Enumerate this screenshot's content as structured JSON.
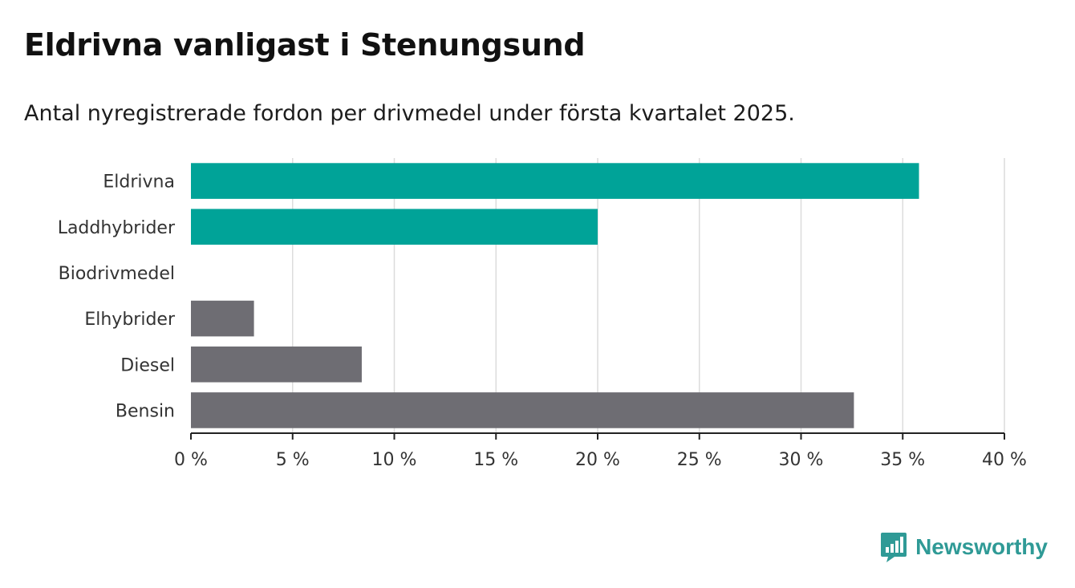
{
  "title": "Eldrivna vanligast i Stenungsund",
  "subtitle": "Antal nyregistrerade fordon per drivmedel under första kvartalet 2025.",
  "brand": {
    "name": "Newsworthy",
    "icon": "newsworthy-logo-icon"
  },
  "colors": {
    "highlight": "#00a398",
    "default": "#6e6d73",
    "grid": "#dcdcdc",
    "axis": "#222222"
  },
  "chart_data": {
    "type": "bar",
    "orientation": "horizontal",
    "categories": [
      "Eldrivna",
      "Laddhybrider",
      "Biodrivmedel",
      "Elhybrider",
      "Diesel",
      "Bensin"
    ],
    "values": [
      35.8,
      20.0,
      0,
      3.1,
      8.4,
      32.6
    ],
    "highlighted": [
      true,
      true,
      true,
      false,
      false,
      false
    ],
    "unit": "%",
    "xlim": [
      0,
      40
    ],
    "xticks": [
      0,
      5,
      10,
      15,
      20,
      25,
      30,
      35,
      40
    ],
    "xtick_labels": [
      "0 %",
      "5 %",
      "10 %",
      "15 %",
      "20 %",
      "25 %",
      "30 %",
      "35 %",
      "40 %"
    ],
    "grid": true,
    "legend": false
  }
}
